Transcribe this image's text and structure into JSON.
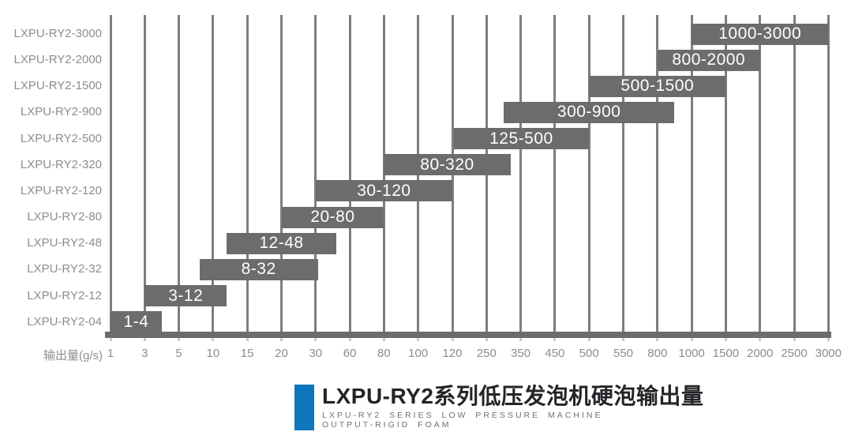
{
  "chart_data": {
    "type": "bar",
    "variant": "horizontal-range-gantt",
    "title": "LXPU-RY2系列低压发泡机硬泡输出量",
    "subtitle_line1": "LXPU-RY2 SERIES LOW PRESSURE MACHINE",
    "subtitle_line2": "OUTPUT-RIGID FOAM",
    "xlabel": "输出量(g/s)",
    "x_scale": "categorical-interpolated",
    "grid": "vertical-on",
    "ticks": [
      1,
      3,
      5,
      10,
      15,
      20,
      30,
      60,
      80,
      100,
      120,
      250,
      350,
      450,
      500,
      550,
      800,
      1000,
      1500,
      2000,
      2500,
      3000
    ],
    "rows": [
      {
        "model": "LXPU-RY2-3000",
        "range": [
          1000,
          3000
        ],
        "label": "1000-3000"
      },
      {
        "model": "LXPU-RY2-2000",
        "range": [
          800,
          2000
        ],
        "label": "800-2000"
      },
      {
        "model": "LXPU-RY2-1500",
        "range": [
          500,
          1500
        ],
        "label": "500-1500"
      },
      {
        "model": "LXPU-RY2-900",
        "range": [
          300,
          900
        ],
        "label": "300-900"
      },
      {
        "model": "LXPU-RY2-500",
        "range": [
          125,
          500
        ],
        "label": "125-500"
      },
      {
        "model": "LXPU-RY2-320",
        "range": [
          80,
          320
        ],
        "label": "80-320"
      },
      {
        "model": "LXPU-RY2-120",
        "range": [
          30,
          120
        ],
        "label": "30-120"
      },
      {
        "model": "LXPU-RY2-80",
        "range": [
          20,
          80
        ],
        "label": "20-80"
      },
      {
        "model": "LXPU-RY2-48",
        "range": [
          12,
          48
        ],
        "label": "12-48"
      },
      {
        "model": "LXPU-RY2-32",
        "range": [
          8,
          32
        ],
        "label": "8-32"
      },
      {
        "model": "LXPU-RY2-12",
        "range": [
          3,
          12
        ],
        "label": "3-12"
      },
      {
        "model": "LXPU-RY2-04",
        "range": [
          1,
          4
        ],
        "label": "1-4"
      }
    ],
    "colors": {
      "bar": "#6a6c6e",
      "grid": "#7c7e81",
      "axis_text": "#8b8d90",
      "bar_text": "#ffffff",
      "tick_stub": "#c9cacb",
      "accent_blue": "#0e76bc",
      "title_text": "#222427",
      "subtitle_text": "#6e7073"
    }
  }
}
